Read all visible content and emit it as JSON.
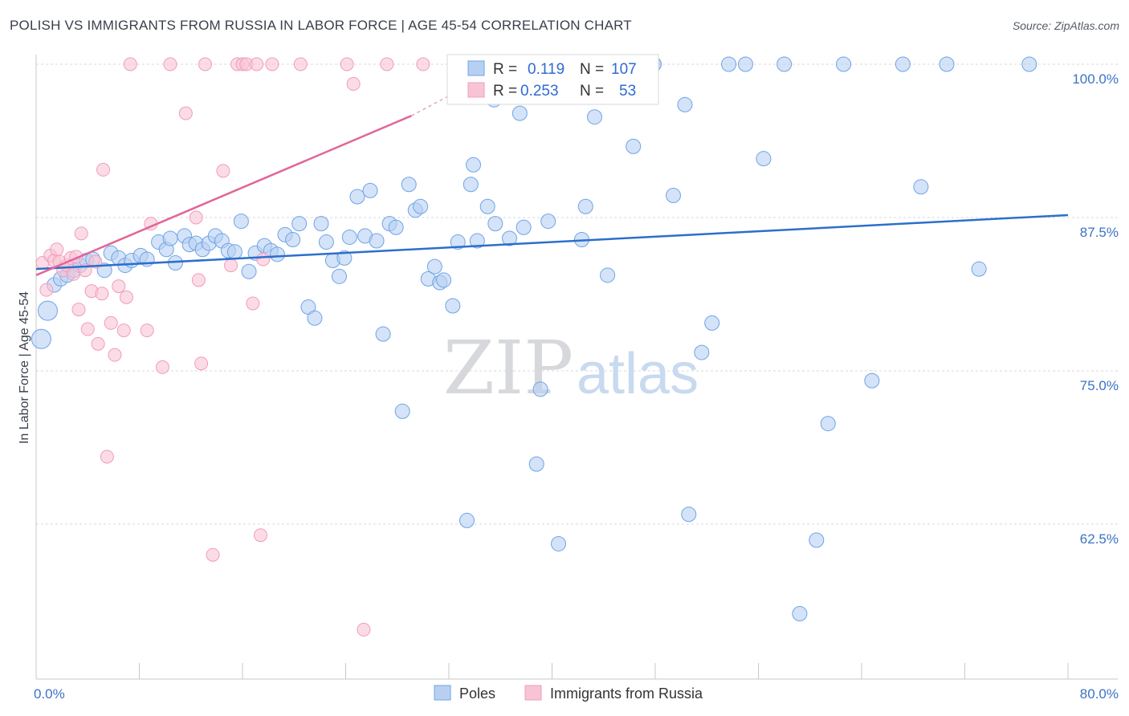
{
  "title": "POLISH VS IMMIGRANTS FROM RUSSIA IN LABOR FORCE | AGE 45-54 CORRELATION CHART",
  "source": "Source: ZipAtlas.com",
  "watermark": {
    "zip": "ZIP",
    "atlas": "atlas"
  },
  "legend": {
    "r_label": "R =",
    "n_label": "N =",
    "poles": {
      "r": "0.119",
      "n": "107"
    },
    "russia": {
      "r": "0.253",
      "n": "53"
    }
  },
  "chart_data": {
    "type": "scatter",
    "title": "POLISH VS IMMIGRANTS FROM RUSSIA IN LABOR FORCE | AGE 45-54 CORRELATION CHART",
    "xlabel": "",
    "ylabel": "In Labor Force | Age 45-54",
    "xlim": [
      0,
      80
    ],
    "ylim": [
      50.5,
      102
    ],
    "x_tick_labels": [
      "0.0%",
      "80.0%"
    ],
    "y_ticks": [
      62.5,
      75.0,
      87.5,
      100.0
    ],
    "y_tick_labels": [
      "62.5%",
      "75.0%",
      "87.5%",
      "100.0%"
    ],
    "grid": true,
    "legend_position": "top-center",
    "series": [
      {
        "name": "Poles",
        "color": "#6fa3e8",
        "fill": "#b7d0f2",
        "trend": {
          "x": [
            0,
            80
          ],
          "y": [
            83.3,
            87.7
          ],
          "color": "#2c6fcc"
        },
        "points": [
          [
            0.4,
            77.6
          ],
          [
            0.9,
            79.9
          ],
          [
            1.4,
            82.0
          ],
          [
            1.9,
            82.5
          ],
          [
            2.4,
            82.8
          ],
          [
            2.9,
            83.2
          ],
          [
            3.4,
            83.6
          ],
          [
            3.9,
            84.0
          ],
          [
            4.4,
            84.1
          ],
          [
            5.3,
            83.2
          ],
          [
            5.8,
            84.6
          ],
          [
            6.4,
            84.2
          ],
          [
            6.9,
            83.6
          ],
          [
            7.4,
            84.0
          ],
          [
            8.1,
            84.4
          ],
          [
            8.6,
            84.1
          ],
          [
            9.5,
            85.5
          ],
          [
            10.1,
            84.9
          ],
          [
            10.4,
            85.8
          ],
          [
            10.8,
            83.8
          ],
          [
            11.5,
            86.0
          ],
          [
            11.9,
            85.3
          ],
          [
            12.4,
            85.4
          ],
          [
            12.9,
            84.9
          ],
          [
            13.4,
            85.4
          ],
          [
            13.9,
            86.0
          ],
          [
            14.4,
            85.6
          ],
          [
            14.9,
            84.8
          ],
          [
            15.4,
            84.7
          ],
          [
            15.9,
            87.2
          ],
          [
            16.5,
            83.1
          ],
          [
            17.0,
            84.6
          ],
          [
            17.7,
            85.2
          ],
          [
            18.2,
            84.8
          ],
          [
            18.7,
            84.5
          ],
          [
            19.3,
            86.1
          ],
          [
            19.9,
            85.7
          ],
          [
            20.4,
            87.0
          ],
          [
            21.1,
            80.2
          ],
          [
            21.6,
            79.3
          ],
          [
            22.1,
            87.0
          ],
          [
            22.5,
            85.5
          ],
          [
            23.0,
            84.0
          ],
          [
            23.5,
            82.7
          ],
          [
            23.9,
            84.2
          ],
          [
            24.3,
            85.9
          ],
          [
            24.9,
            89.2
          ],
          [
            25.5,
            86.0
          ],
          [
            25.9,
            89.7
          ],
          [
            26.4,
            85.6
          ],
          [
            26.9,
            78.0
          ],
          [
            27.4,
            87.0
          ],
          [
            27.9,
            86.7
          ],
          [
            28.4,
            71.7
          ],
          [
            28.9,
            90.2
          ],
          [
            29.4,
            88.1
          ],
          [
            29.8,
            88.4
          ],
          [
            30.4,
            82.5
          ],
          [
            30.9,
            83.5
          ],
          [
            31.3,
            82.2
          ],
          [
            31.6,
            82.4
          ],
          [
            32.3,
            80.3
          ],
          [
            32.7,
            85.5
          ],
          [
            33.4,
            62.8
          ],
          [
            33.7,
            90.2
          ],
          [
            33.9,
            91.8
          ],
          [
            34.2,
            85.6
          ],
          [
            35.0,
            88.4
          ],
          [
            35.5,
            97.1
          ],
          [
            35.6,
            87.0
          ],
          [
            36.7,
            85.8
          ],
          [
            37.5,
            96.0
          ],
          [
            37.8,
            86.7
          ],
          [
            38.8,
            67.4
          ],
          [
            39.1,
            73.5
          ],
          [
            39.7,
            87.2
          ],
          [
            40.5,
            60.9
          ],
          [
            41.0,
            98.5
          ],
          [
            41.4,
            100.0
          ],
          [
            42.3,
            85.7
          ],
          [
            42.6,
            88.4
          ],
          [
            43.3,
            95.7
          ],
          [
            44.3,
            82.8
          ],
          [
            45.6,
            99.6
          ],
          [
            46.3,
            93.3
          ],
          [
            46.7,
            100.0
          ],
          [
            47.9,
            100.0
          ],
          [
            47.9,
            100.0
          ],
          [
            49.4,
            89.3
          ],
          [
            50.3,
            96.7
          ],
          [
            50.6,
            63.3
          ],
          [
            51.6,
            76.5
          ],
          [
            52.4,
            78.9
          ],
          [
            53.7,
            100.0
          ],
          [
            55.0,
            100.0
          ],
          [
            56.4,
            92.3
          ],
          [
            58.0,
            100.0
          ],
          [
            59.2,
            55.2
          ],
          [
            60.5,
            61.2
          ],
          [
            61.4,
            70.7
          ],
          [
            62.6,
            100.0
          ],
          [
            64.8,
            74.2
          ],
          [
            67.2,
            100.0
          ],
          [
            68.6,
            90.0
          ],
          [
            70.6,
            100.0
          ],
          [
            73.1,
            83.3
          ],
          [
            77.0,
            100.0
          ]
        ]
      },
      {
        "name": "Immigrants from Russia",
        "color": "#f39bb8",
        "fill": "#f8c4d5",
        "trend": {
          "x": [
            0,
            30
          ],
          "y": [
            82.8,
            96.2
          ],
          "color": "#e06699"
        },
        "points": [
          [
            0.5,
            83.8
          ],
          [
            0.8,
            81.6
          ],
          [
            1.1,
            84.4
          ],
          [
            1.4,
            84.0
          ],
          [
            1.6,
            84.9
          ],
          [
            1.8,
            83.9
          ],
          [
            2.1,
            83.2
          ],
          [
            2.4,
            83.6
          ],
          [
            2.7,
            84.2
          ],
          [
            2.9,
            82.9
          ],
          [
            3.1,
            84.3
          ],
          [
            3.3,
            80.0
          ],
          [
            3.5,
            86.2
          ],
          [
            3.8,
            83.2
          ],
          [
            4.0,
            78.4
          ],
          [
            4.3,
            81.5
          ],
          [
            4.6,
            83.9
          ],
          [
            4.8,
            77.2
          ],
          [
            5.1,
            81.3
          ],
          [
            5.2,
            91.4
          ],
          [
            5.5,
            68.0
          ],
          [
            5.8,
            78.9
          ],
          [
            6.1,
            76.3
          ],
          [
            6.4,
            81.9
          ],
          [
            6.8,
            78.3
          ],
          [
            7.0,
            81.0
          ],
          [
            7.3,
            100.0
          ],
          [
            8.6,
            78.3
          ],
          [
            8.9,
            87.0
          ],
          [
            9.8,
            75.3
          ],
          [
            10.4,
            100.0
          ],
          [
            11.6,
            96.0
          ],
          [
            12.4,
            87.5
          ],
          [
            12.6,
            82.4
          ],
          [
            12.8,
            75.6
          ],
          [
            13.1,
            100.0
          ],
          [
            13.7,
            60.0
          ],
          [
            14.5,
            91.3
          ],
          [
            15.1,
            83.6
          ],
          [
            15.6,
            100.0
          ],
          [
            16.0,
            100.0
          ],
          [
            16.3,
            100.0
          ],
          [
            16.8,
            80.5
          ],
          [
            17.1,
            100.0
          ],
          [
            17.4,
            61.6
          ],
          [
            17.6,
            84.1
          ],
          [
            18.3,
            100.0
          ],
          [
            20.5,
            100.0
          ],
          [
            24.1,
            100.0
          ],
          [
            24.6,
            98.4
          ],
          [
            25.4,
            53.9
          ],
          [
            27.2,
            100.0
          ],
          [
            30.0,
            100.0
          ]
        ]
      }
    ]
  }
}
